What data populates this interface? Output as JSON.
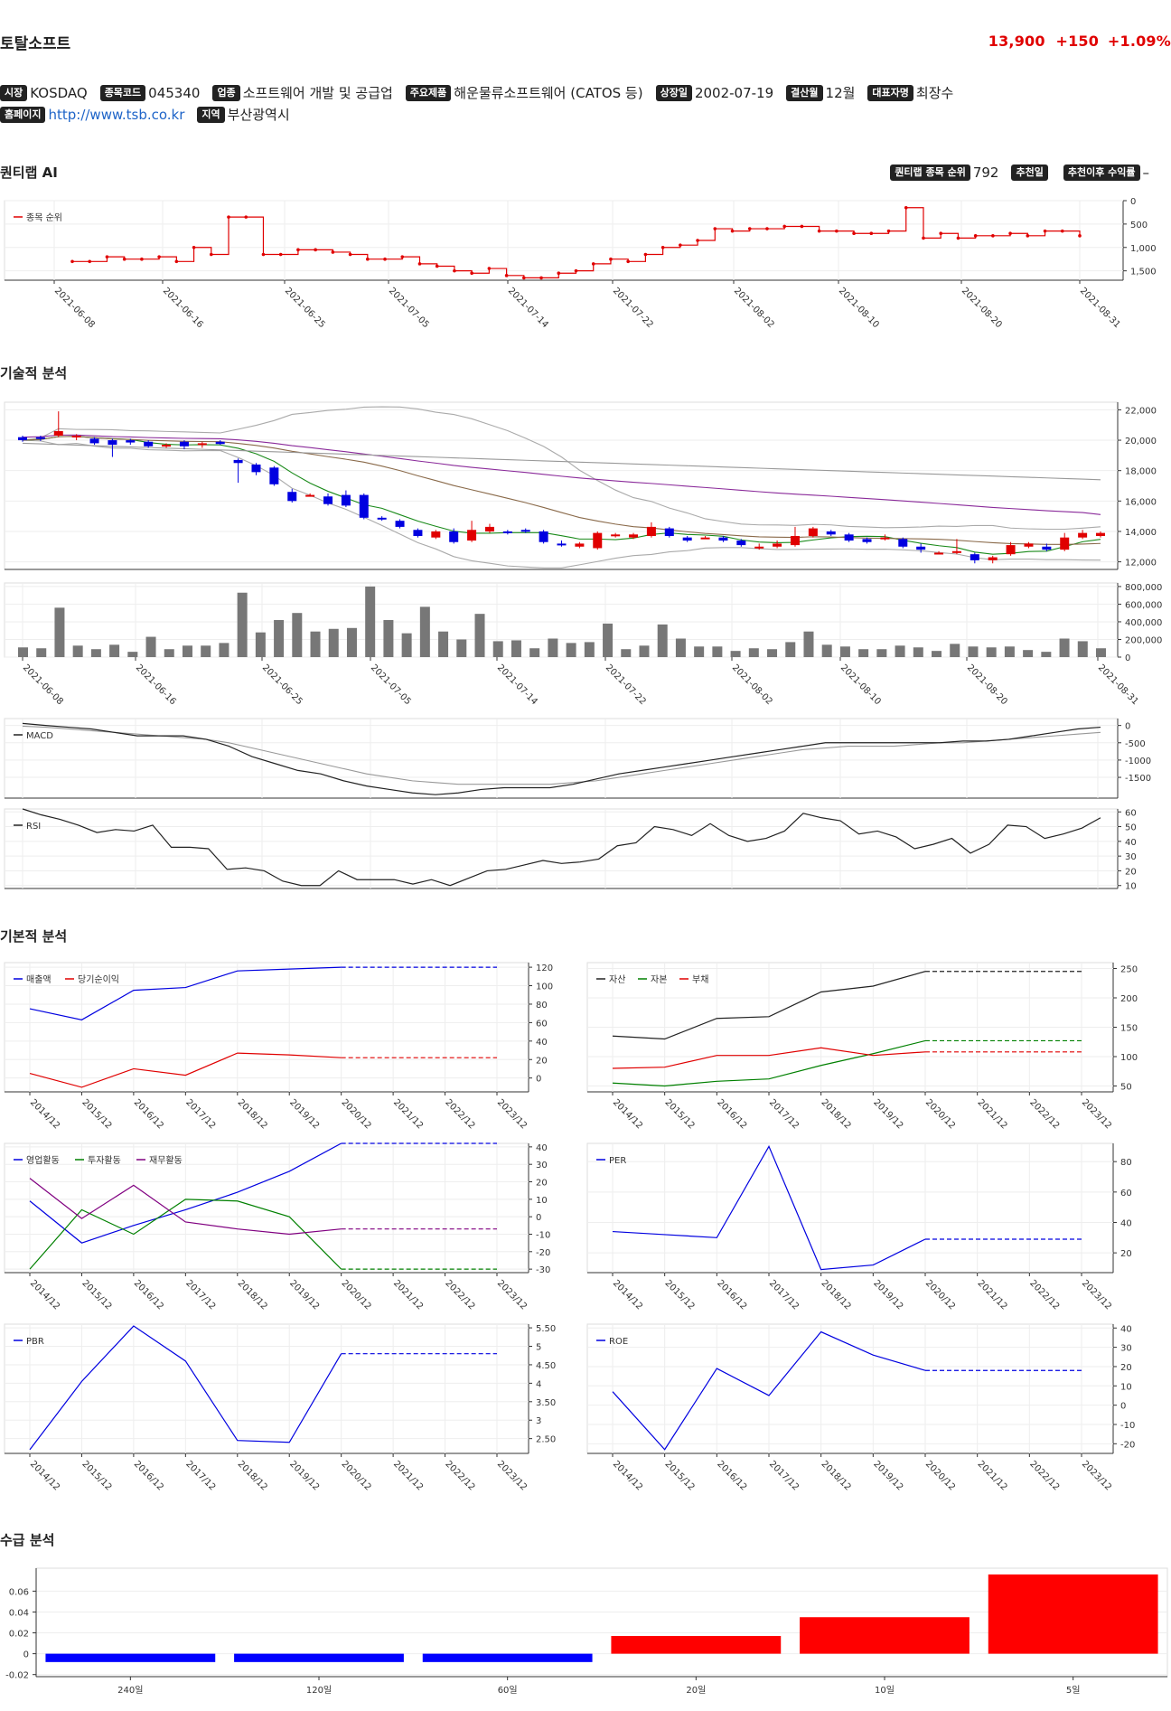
{
  "header": {
    "name": "토탈소프트",
    "price": "13,900",
    "change": "+150",
    "change_pct": "+1.09%"
  },
  "info": [
    {
      "label": "시장",
      "value": "KOSDAQ"
    },
    {
      "label": "종목코드",
      "value": "045340"
    },
    {
      "label": "업종",
      "value": "소프트웨어 개발 및 공급업"
    },
    {
      "label": "주요제품",
      "value": "해운물류소프트웨어 (CATOS 등)"
    },
    {
      "label": "상장일",
      "value": "2002-07-19"
    },
    {
      "label": "결산월",
      "value": "12월"
    },
    {
      "label": "대표자명",
      "value": "최장수"
    }
  ],
  "info2": [
    {
      "label": "홈페이지",
      "value": "http://www.tsb.co.kr"
    },
    {
      "label": "지역",
      "value": "부산광역시"
    }
  ],
  "sections": {
    "ai": "퀀티랩 AI",
    "tech": "기술적 분석",
    "fund": "기본적 분석",
    "flow": "수급 분석"
  },
  "ai_rank": {
    "rank_label": "퀀티랩 종목 순위",
    "rank_value": "792",
    "rec_label": "추천일",
    "rec_value": "",
    "ret_label": "추천이후 수익률",
    "ret_value": "–"
  },
  "colors": {
    "up": "#e00000",
    "down": "#0000e0",
    "price_up": "#e00000"
  },
  "chart_data": [
    {
      "id": "rank",
      "type": "line",
      "legend": [
        "종목 순위"
      ],
      "y_ticks": [
        "0",
        "500",
        "1,000",
        "1,500"
      ],
      "ylim": [
        0,
        1700
      ],
      "y_inverted": true,
      "x_ticks": [
        "2021-06-08",
        "2021-06-16",
        "2021-06-25",
        "2021-07-05",
        "2021-07-14",
        "2021-07-22",
        "2021-08-02",
        "2021-08-10",
        "2021-08-20",
        "2021-08-31"
      ],
      "values": [
        1300,
        1300,
        1200,
        1250,
        1250,
        1200,
        1300,
        1000,
        1150,
        350,
        350,
        1150,
        1150,
        1050,
        1050,
        1100,
        1150,
        1250,
        1250,
        1200,
        1350,
        1400,
        1500,
        1550,
        1450,
        1600,
        1650,
        1650,
        1550,
        1500,
        1350,
        1250,
        1300,
        1150,
        1000,
        950,
        850,
        600,
        650,
        600,
        600,
        550,
        550,
        650,
        650,
        700,
        700,
        650,
        150,
        800,
        700,
        800,
        750,
        750,
        700,
        750,
        650,
        650,
        750
      ]
    },
    {
      "id": "price",
      "type": "candlestick",
      "y_ticks": [
        "22,000",
        "20,000",
        "18,000",
        "16,000",
        "14,000",
        "12,000"
      ],
      "ylim": [
        11500,
        22500
      ],
      "candles": [
        [
          20200,
          20000,
          20300,
          19900
        ],
        [
          20200,
          20100,
          20300,
          19950
        ],
        [
          20300,
          20600,
          21900,
          20200
        ],
        [
          20200,
          20300,
          20400,
          20000
        ],
        [
          20100,
          19800,
          20200,
          19700
        ],
        [
          20000,
          19700,
          20100,
          18900
        ],
        [
          20000,
          19850,
          20100,
          19700
        ],
        [
          19900,
          19600,
          20000,
          19500
        ],
        [
          19600,
          19700,
          19800,
          19500
        ],
        [
          19900,
          19600,
          20000,
          19400
        ],
        [
          19700,
          19800,
          19900,
          19500
        ],
        [
          19900,
          19750,
          20000,
          19700
        ],
        [
          18700,
          18500,
          18800,
          17200
        ],
        [
          18400,
          17900,
          18500,
          17700
        ],
        [
          18200,
          17100,
          18300,
          17000
        ],
        [
          16600,
          16000,
          16800,
          15900
        ],
        [
          16400,
          16400,
          16500,
          16300
        ],
        [
          16300,
          15800,
          16500,
          15700
        ],
        [
          16400,
          15700,
          16700,
          15600
        ],
        [
          16400,
          14900,
          16500,
          14800
        ],
        [
          14900,
          14800,
          15000,
          14700
        ],
        [
          14700,
          14300,
          14800,
          14200
        ],
        [
          14100,
          13700,
          14200,
          13600
        ],
        [
          13600,
          14000,
          14100,
          13500
        ],
        [
          14000,
          13300,
          14200,
          13200
        ],
        [
          13400,
          14100,
          14700,
          13300
        ],
        [
          14000,
          14300,
          14500,
          13900
        ],
        [
          14000,
          13900,
          14100,
          13800
        ],
        [
          14100,
          14000,
          14200,
          13900
        ],
        [
          14000,
          13300,
          14100,
          13200
        ],
        [
          13200,
          13100,
          13400,
          13000
        ],
        [
          13000,
          13200,
          13300,
          12900
        ],
        [
          12900,
          13900,
          14000,
          12800
        ],
        [
          13700,
          13800,
          13900,
          13600
        ],
        [
          13600,
          13800,
          13900,
          13500
        ],
        [
          13700,
          14300,
          14600,
          13600
        ],
        [
          14200,
          13700,
          14300,
          13600
        ],
        [
          13600,
          13400,
          13700,
          13300
        ],
        [
          13600,
          13600,
          13700,
          13500
        ],
        [
          13600,
          13400,
          13700,
          13300
        ],
        [
          13400,
          13100,
          13500,
          13000
        ],
        [
          13000,
          13000,
          13200,
          12800
        ],
        [
          13000,
          13200,
          13400,
          12900
        ],
        [
          13100,
          13700,
          14300,
          13000
        ],
        [
          13700,
          14200,
          14300,
          13600
        ],
        [
          14000,
          13800,
          14100,
          13700
        ],
        [
          13800,
          13400,
          13900,
          13300
        ],
        [
          13500,
          13300,
          13600,
          13200
        ],
        [
          13500,
          13600,
          13800,
          13400
        ],
        [
          13500,
          13000,
          13600,
          12900
        ],
        [
          13000,
          12800,
          13200,
          12600
        ],
        [
          12600,
          12600,
          12700,
          12500
        ],
        [
          12600,
          12700,
          13500,
          12500
        ],
        [
          12500,
          12100,
          12600,
          11900
        ],
        [
          12100,
          12300,
          12400,
          11900
        ],
        [
          12500,
          13100,
          13300,
          12400
        ],
        [
          13000,
          13200,
          13300,
          12900
        ],
        [
          13000,
          12800,
          13200,
          12700
        ],
        [
          12800,
          13600,
          13900,
          12700
        ],
        [
          13600,
          13900,
          14100,
          13500
        ],
        [
          13700,
          13900,
          14000,
          13600
        ]
      ]
    },
    {
      "id": "volume",
      "type": "bar",
      "y_ticks": [
        "800,000",
        "600,000",
        "400,000",
        "200,000",
        "0"
      ],
      "ylim": [
        0,
        840000
      ],
      "x_ticks": [
        "2021-06-08",
        "2021-06-16",
        "2021-06-25",
        "2021-07-05",
        "2021-07-14",
        "2021-07-22",
        "2021-08-02",
        "2021-08-10",
        "2021-08-20",
        "2021-08-31"
      ],
      "values": [
        110000,
        100000,
        560000,
        130000,
        90000,
        140000,
        60000,
        230000,
        90000,
        130000,
        130000,
        160000,
        730000,
        280000,
        420000,
        500000,
        290000,
        320000,
        330000,
        800000,
        420000,
        270000,
        570000,
        290000,
        200000,
        490000,
        180000,
        190000,
        100000,
        210000,
        160000,
        170000,
        380000,
        90000,
        130000,
        370000,
        210000,
        120000,
        120000,
        70000,
        100000,
        90000,
        170000,
        290000,
        140000,
        120000,
        90000,
        90000,
        130000,
        110000,
        70000,
        150000,
        120000,
        110000,
        120000,
        80000,
        60000,
        210000,
        180000,
        100000
      ]
    },
    {
      "id": "macd",
      "type": "line",
      "legend": [
        "MACD"
      ],
      "y_ticks": [
        "0",
        "-500",
        "-1000",
        "-1500"
      ],
      "ylim": [
        -2100,
        200
      ],
      "series": [
        {
          "values": [
            60,
            0,
            -50,
            -100,
            -200,
            -300,
            -300,
            -300,
            -400,
            -600,
            -900,
            -1100,
            -1300,
            -1400,
            -1600,
            -1750,
            -1850,
            -1950,
            -2000,
            -1950,
            -1850,
            -1800,
            -1800,
            -1800,
            -1700,
            -1550,
            -1400,
            -1300,
            -1200,
            -1100,
            -1000,
            -900,
            -800,
            -700,
            -600,
            -500,
            -500,
            -500,
            -500,
            -500,
            -500,
            -450,
            -450,
            -400,
            -300,
            -200,
            -100,
            -50
          ]
        },
        {
          "values": [
            -20,
            -50,
            -100,
            -150,
            -200,
            -250,
            -300,
            -350,
            -400,
            -500,
            -650,
            -800,
            -950,
            -1100,
            -1250,
            -1400,
            -1500,
            -1600,
            -1650,
            -1700,
            -1700,
            -1700,
            -1700,
            -1700,
            -1650,
            -1600,
            -1500,
            -1400,
            -1300,
            -1200,
            -1100,
            -1000,
            -900,
            -800,
            -700,
            -650,
            -600,
            -600,
            -600,
            -550,
            -500,
            -500,
            -450,
            -400,
            -350,
            -300,
            -250,
            -200
          ]
        }
      ]
    },
    {
      "id": "rsi",
      "type": "line",
      "legend": [
        "RSI"
      ],
      "y_ticks": [
        "60",
        "50",
        "40",
        "30",
        "20",
        "10"
      ],
      "ylim": [
        8,
        62
      ],
      "values": [
        62,
        58,
        55,
        51,
        46,
        48,
        47,
        51,
        36,
        36,
        35,
        21,
        22,
        20,
        13,
        10,
        10,
        20,
        14,
        14,
        14,
        11,
        14,
        10,
        15,
        20,
        21,
        24,
        27,
        25,
        26,
        28,
        37,
        39,
        50,
        48,
        44,
        52,
        44,
        40,
        42,
        47,
        59,
        56,
        54,
        45,
        47,
        43,
        35,
        38,
        42,
        32,
        38,
        51,
        50,
        42,
        45,
        49,
        56
      ]
    },
    {
      "id": "sales",
      "type": "line",
      "legend": [
        "매출액",
        "당기순이익"
      ],
      "y_ticks": [
        "120",
        "100",
        "80",
        "60",
        "40",
        "20",
        "0"
      ],
      "ylim": [
        -15,
        125
      ],
      "x_ticks": [
        "2014/12",
        "2015/12",
        "2016/12",
        "2017/12",
        "2018/12",
        "2019/12",
        "2020/12",
        "2021/12",
        "2022/12",
        "2023/12"
      ],
      "series": [
        {
          "name": "매출액",
          "color": "#0000e0",
          "values": [
            75,
            63,
            95,
            98,
            116,
            118,
            120
          ],
          "forecast": 120
        },
        {
          "name": "당기순이익",
          "color": "#e00000",
          "values": [
            5,
            -10,
            10,
            3,
            27,
            25,
            22
          ],
          "forecast": 22
        }
      ]
    },
    {
      "id": "assets",
      "type": "line",
      "legend": [
        "자산",
        "자본",
        "부채"
      ],
      "y_ticks": [
        "250",
        "200",
        "150",
        "100",
        "50"
      ],
      "ylim": [
        40,
        260
      ],
      "x_ticks": [
        "2014/12",
        "2015/12",
        "2016/12",
        "2017/12",
        "2018/12",
        "2019/12",
        "2020/12",
        "2021/12",
        "2022/12",
        "2023/12"
      ],
      "series": [
        {
          "name": "자산",
          "color": "#222222",
          "values": [
            135,
            130,
            165,
            168,
            210,
            220,
            245
          ],
          "forecast": 245
        },
        {
          "name": "자본",
          "color": "#008000",
          "values": [
            55,
            50,
            58,
            62,
            85,
            105,
            127
          ],
          "forecast": 127
        },
        {
          "name": "부채",
          "color": "#e00000",
          "values": [
            80,
            82,
            102,
            102,
            115,
            102,
            108
          ],
          "forecast": 108
        }
      ]
    },
    {
      "id": "cashflow",
      "type": "line",
      "legend": [
        "영업활동",
        "투자활동",
        "재무활동"
      ],
      "y_ticks": [
        "40",
        "30",
        "20",
        "10",
        "0",
        "-10",
        "-20",
        "-30"
      ],
      "ylim": [
        -32,
        42
      ],
      "x_ticks": [
        "2014/12",
        "2015/12",
        "2016/12",
        "2017/12",
        "2018/12",
        "2019/12",
        "2020/12",
        "2021/12",
        "2022/12",
        "2023/12"
      ],
      "series": [
        {
          "name": "영업활동",
          "color": "#0000e0",
          "values": [
            9,
            -15,
            -5,
            4,
            14,
            26,
            42
          ],
          "forecast": 42
        },
        {
          "name": "투자활동",
          "color": "#008000",
          "values": [
            -30,
            4,
            -10,
            10,
            9,
            0,
            -30
          ],
          "forecast": -30
        },
        {
          "name": "재무활동",
          "color": "#800080",
          "values": [
            22,
            -1,
            18,
            -3,
            -7,
            -10,
            -7
          ],
          "forecast": -7
        }
      ]
    },
    {
      "id": "per",
      "type": "line",
      "legend": [
        "PER"
      ],
      "y_ticks": [
        "80",
        "60",
        "40",
        "20"
      ],
      "ylim": [
        7,
        92
      ],
      "x_ticks": [
        "2014/12",
        "2015/12",
        "2016/12",
        "2017/12",
        "2018/12",
        "2019/12",
        "2020/12",
        "2021/12",
        "2022/12",
        "2023/12"
      ],
      "series": [
        {
          "name": "PER",
          "color": "#0000e0",
          "values": [
            34,
            32,
            30,
            90,
            9,
            12,
            29
          ],
          "forecast": 29
        }
      ]
    },
    {
      "id": "pbr",
      "type": "line",
      "legend": [
        "PBR"
      ],
      "y_ticks": [
        "5.50",
        "5",
        "4.50",
        "4",
        "3.50",
        "3",
        "2.50"
      ],
      "ylim": [
        2.1,
        5.6
      ],
      "x_ticks": [
        "2014/12",
        "2015/12",
        "2016/12",
        "2017/12",
        "2018/12",
        "2019/12",
        "2020/12",
        "2021/12",
        "2022/12",
        "2023/12"
      ],
      "series": [
        {
          "name": "PBR",
          "color": "#0000e0",
          "values": [
            2.2,
            4.05,
            5.55,
            4.6,
            2.45,
            2.4,
            4.8
          ],
          "forecast": 4.8
        }
      ]
    },
    {
      "id": "roe",
      "type": "line",
      "legend": [
        "ROE"
      ],
      "y_ticks": [
        "40",
        "30",
        "20",
        "10",
        "0",
        "-10",
        "-20"
      ],
      "ylim": [
        -25,
        42
      ],
      "x_ticks": [
        "2014/12",
        "2015/12",
        "2016/12",
        "2017/12",
        "2018/12",
        "2019/12",
        "2020/12",
        "2021/12",
        "2022/12",
        "2023/12"
      ],
      "series": [
        {
          "name": "ROE",
          "color": "#0000e0",
          "values": [
            7,
            -23,
            19,
            5,
            38,
            26,
            18
          ],
          "forecast": 18
        }
      ]
    },
    {
      "id": "flow",
      "type": "bar",
      "categories": [
        "240일",
        "120일",
        "60일",
        "20일",
        "10일",
        "5일"
      ],
      "values": [
        -0.008,
        -0.008,
        -0.008,
        0.017,
        0.035,
        0.076
      ],
      "y_ticks": [
        "0.06",
        "0.04",
        "0.02",
        "0",
        "-0.02"
      ],
      "ylim": [
        -0.022,
        0.082
      ]
    }
  ]
}
